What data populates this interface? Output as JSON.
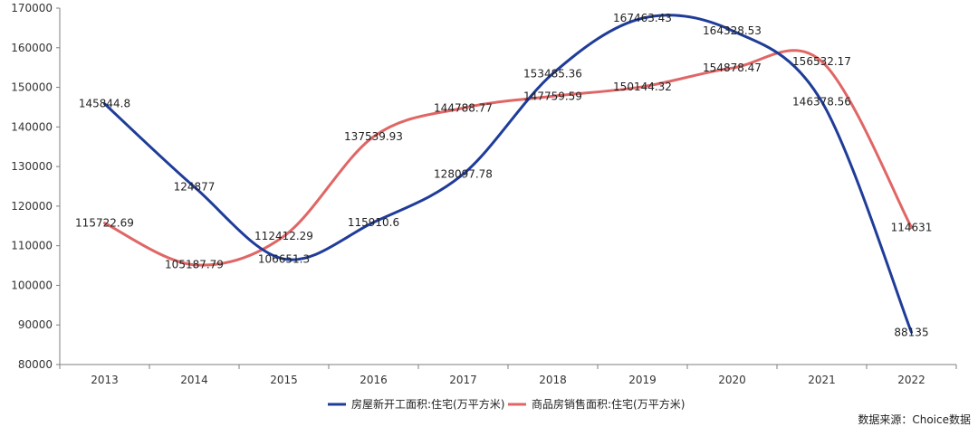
{
  "chart_data": {
    "type": "line",
    "categories": [
      "2013",
      "2014",
      "2015",
      "2016",
      "2017",
      "2018",
      "2019",
      "2020",
      "2021",
      "2022"
    ],
    "series": [
      {
        "name": "房屋新开工面积:住宅(万平方米)",
        "color": "#1f3c99",
        "values": [
          145844.8,
          124877,
          106651.3,
          115910.6,
          128097.78,
          153485.36,
          167463.43,
          164328.53,
          146378.56,
          88135
        ],
        "labels": [
          "145844.8",
          "124877",
          "106651.3",
          "115910.6",
          "128097.78",
          "153485.36",
          "167463.43",
          "164328.53",
          "146378.56",
          "88135"
        ]
      },
      {
        "name": "商品房销售面积:住宅(万平方米)",
        "color": "#e06666",
        "values": [
          115722.69,
          105187.79,
          112412.29,
          137539.93,
          144788.77,
          147759.59,
          150144.32,
          154878.47,
          156532.17,
          114631
        ],
        "labels": [
          "115722.69",
          "105187.79",
          "112412.29",
          "137539.93",
          "144788.77",
          "147759.59",
          "150144.32",
          "154878.47",
          "156532.17",
          "114631"
        ]
      }
    ],
    "yticks": [
      "80000",
      "90000",
      "100000",
      "110000",
      "120000",
      "130000",
      "140000",
      "150000",
      "160000",
      "170000"
    ],
    "ylim": [
      80000,
      170000
    ],
    "grid": false,
    "legend_position": "bottom"
  },
  "source": "数据来源：Choice数据"
}
